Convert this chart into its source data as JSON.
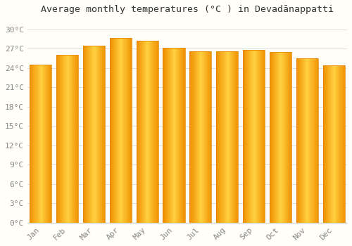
{
  "months": [
    "Jan",
    "Feb",
    "Mar",
    "Apr",
    "May",
    "Jun",
    "Jul",
    "Aug",
    "Sep",
    "Oct",
    "Nov",
    "Dec"
  ],
  "temperatures": [
    24.5,
    26.0,
    27.5,
    28.7,
    28.2,
    27.1,
    26.6,
    26.6,
    26.8,
    26.5,
    25.5,
    24.4
  ],
  "bar_color_main": "#FFA500",
  "bar_color_light": "#FFD060",
  "bar_color_edge": "#E08000",
  "background_color": "#FFFEF8",
  "plot_bg_color": "#FFFEF8",
  "grid_color": "#DDDDDD",
  "title": "Average monthly temperatures (°C ) in Devadānappatti",
  "title_fontsize": 9.5,
  "ylabel_ticks": [
    0,
    3,
    6,
    9,
    12,
    15,
    18,
    21,
    24,
    27,
    30
  ],
  "ylim": [
    0,
    31.5
  ],
  "tick_label_color": "#888888",
  "axis_label_fontsize": 8,
  "font_family": "monospace"
}
